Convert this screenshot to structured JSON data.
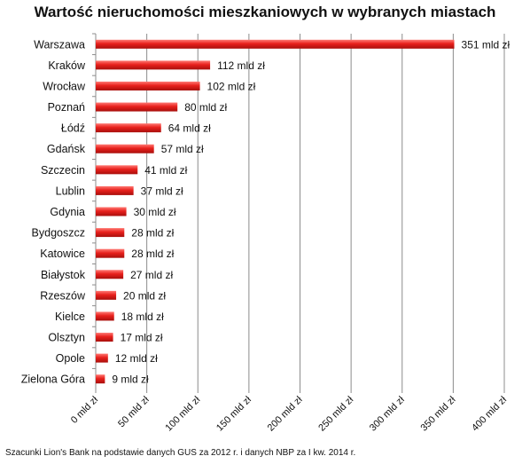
{
  "chart_data": {
    "type": "bar",
    "orientation": "horizontal",
    "title": "Wartość nieruchomości mieszkaniowych w wybranych miastach",
    "categories": [
      "Warszawa",
      "Kraków",
      "Wrocław",
      "Poznań",
      "Łódź",
      "Gdańsk",
      "Szczecin",
      "Lublin",
      "Gdynia",
      "Bydgoszcz",
      "Katowice",
      "Białystok",
      "Rzeszów",
      "Kielce",
      "Olsztyn",
      "Opole",
      "Zielona Góra"
    ],
    "values": [
      351,
      112,
      102,
      80,
      64,
      57,
      41,
      37,
      30,
      28,
      28,
      27,
      20,
      18,
      17,
      12,
      9
    ],
    "data_labels": [
      "351 mld zł",
      "112 mld zł",
      "102 mld zł",
      "80 mld zł",
      "64 mld zł",
      "57 mld zł",
      "41 mld zł",
      "37 mld zł",
      "30 mld zł",
      "28 mld zł",
      "28 mld zł",
      "27 mld zł",
      "20 mld zł",
      "18 mld zł",
      "17 mld zł",
      "12 mld zł",
      "9 mld zł"
    ],
    "xlim": [
      0,
      400
    ],
    "x_ticks": [
      "0 mld zł",
      "50 mld zł",
      "100 mld zł",
      "150 mld zł",
      "200 mld zł",
      "250 mld zł",
      "300 mld zł",
      "350 mld zł",
      "400 mld zł"
    ],
    "grid": true,
    "bar_color": "#e8201c"
  },
  "source_note": "Szacunki Lion's Bank na podstawie danych GUS za 2012 r. i danych NBP za I kw. 2014 r."
}
